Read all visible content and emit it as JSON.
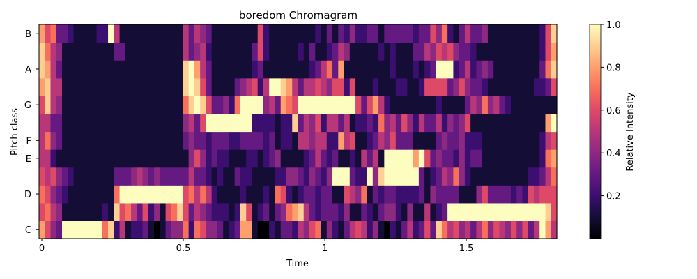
{
  "chart_data": {
    "type": "heatmap",
    "title": "boredom Chromagram",
    "xlabel": "Time",
    "ylabel": "Pitch class",
    "xlim": [
      0,
      1.82
    ],
    "x_ticks": [
      0,
      0.5,
      1,
      1.5
    ],
    "x_tick_labels": [
      "0",
      "0.5",
      "1",
      "1.5"
    ],
    "y_ticks": [
      "C",
      "D",
      "E",
      "F",
      "G",
      "A",
      "B"
    ],
    "rows": [
      "C",
      "C#",
      "D",
      "D#",
      "E",
      "F",
      "F#",
      "G",
      "G#",
      "A",
      "A#",
      "B"
    ],
    "colorbar": {
      "label": "Relative Intensity",
      "range": [
        0,
        1
      ],
      "ticks": [
        0.2,
        0.4,
        0.6,
        0.8,
        1.0
      ],
      "tick_labels": [
        "0.2",
        "0.4",
        "0.6",
        "0.8",
        "1.0"
      ],
      "colormap": "magma"
    },
    "values": [
      [
        0.8,
        0.6,
        0.4,
        0.3,
        1,
        1,
        1,
        1,
        1,
        1,
        1,
        0.7,
        0.9,
        0.2,
        0.5,
        0.1,
        0.2,
        0.2,
        0.3,
        0.1,
        0,
        0.1,
        0.3,
        0.4,
        0.4,
        0.7,
        0.2,
        0.7,
        0.6,
        0.4,
        0.4,
        0.3,
        0.1,
        0.2,
        0.3,
        0.8,
        0.8,
        0.1,
        0,
        0,
        0.2,
        0.1,
        0.3,
        0.3,
        0.2,
        0.5,
        0.4,
        0.6,
        0.7,
        0.1,
        0.4,
        0.2,
        0.1,
        0.3,
        0.5,
        0.6,
        0.5,
        0.2,
        0.4,
        0.1,
        0,
        0.2,
        0.1,
        0.3,
        0.5,
        0.2,
        0.3,
        0.6,
        0.3,
        0.9,
        0.7,
        0.5,
        0.6,
        0.4,
        0.5,
        0.3,
        0.5,
        0.7,
        0.4,
        0.6,
        0.5,
        0.4,
        0.6,
        0.4,
        0.6,
        0.3,
        0.5,
        1,
        0.8,
        0.5
      ],
      [
        0.6,
        0.7,
        0.5,
        0.4,
        0.1,
        0.1,
        0.1,
        0.1,
        0.1,
        0.1,
        0.1,
        0.2,
        0.1,
        0.9,
        0.6,
        0.7,
        0.5,
        0.3,
        0.6,
        0.2,
        0.4,
        0.1,
        0.6,
        0.7,
        0.9,
        0.6,
        0.3,
        0.5,
        0.4,
        0.3,
        0.2,
        0.2,
        0.2,
        0.1,
        0.2,
        0.9,
        0.6,
        0.1,
        0.2,
        0.3,
        0.1,
        0.3,
        0.4,
        0.7,
        0.8,
        0.9,
        0.5,
        0.3,
        0.2,
        0.3,
        0.3,
        0.3,
        0.2,
        0.4,
        0.1,
        0.1,
        0.3,
        0.2,
        0.1,
        0.3,
        0.4,
        0.4,
        0.2,
        0.1,
        0.4,
        0.1,
        0.1,
        0.5,
        0.1,
        0.2,
        0.3,
        1,
        1,
        1,
        1,
        1,
        1,
        1,
        1,
        1,
        1,
        1,
        1,
        1,
        1,
        1,
        1,
        1,
        0.9,
        0.6
      ],
      [
        0.7,
        0.6,
        0.4,
        0.3,
        0.2,
        0.1,
        0.1,
        0.1,
        0.1,
        0.1,
        0.1,
        0.1,
        0.1,
        0.7,
        1,
        1,
        1,
        1,
        1,
        1,
        1,
        1,
        1,
        1,
        1,
        0.6,
        0.7,
        0.5,
        0.7,
        0.5,
        0.2,
        0.1,
        0.1,
        0.1,
        0.1,
        0.2,
        0.1,
        0.1,
        0.1,
        0.2,
        0.1,
        0.7,
        0.6,
        0.2,
        0.1,
        0.2,
        0.3,
        0.3,
        0.2,
        0.3,
        0.3,
        0.1,
        0.1,
        0.6,
        0.5,
        0.4,
        0.7,
        0.1,
        0.3,
        0.2,
        0.3,
        0.3,
        0.2,
        0.2,
        0.2,
        0.2,
        0.3,
        0.1,
        0.4,
        0.3,
        0.3,
        0.3,
        0.3,
        0.1,
        0.1,
        0.1,
        0.4,
        0.6,
        0.3,
        0.3,
        0.3,
        0.3,
        0.2,
        0.3,
        0.2,
        0.6,
        0.5,
        0.6,
        0.6,
        0.6
      ],
      [
        0.6,
        0.5,
        0.6,
        0.4,
        0.3,
        0.2,
        0.1,
        0.1,
        0.1,
        0.1,
        0.1,
        0.1,
        0.1,
        0.3,
        0.3,
        0.3,
        0.4,
        0.5,
        0.4,
        0.3,
        0.4,
        0.3,
        0.3,
        0.3,
        0.3,
        0.3,
        0.5,
        0.3,
        0.3,
        0.2,
        0.1,
        0.2,
        0.1,
        0.1,
        0.3,
        0.2,
        0.2,
        0.1,
        0.1,
        0.1,
        0.1,
        0.2,
        0.2,
        0.4,
        0.4,
        0.3,
        0.2,
        0.4,
        0.3,
        0.2,
        0.4,
        1,
        1,
        1,
        0.3,
        0.2,
        0.2,
        1,
        0.4,
        0.9,
        1,
        1,
        1,
        1,
        1,
        1,
        0.3,
        0.1,
        0.2,
        0.3,
        0.5,
        0.4,
        0.7,
        0.4,
        0.2,
        0.1,
        0.1,
        0.1,
        0.1,
        0.1,
        0.1,
        0.1,
        0.1,
        0.1,
        0.1,
        0.2,
        0.2,
        0.3,
        0.5,
        0.7
      ],
      [
        0.5,
        0.5,
        0.2,
        0.1,
        0.1,
        0.1,
        0.1,
        0.1,
        0.1,
        0.1,
        0.1,
        0.1,
        0.1,
        0.1,
        0.1,
        0.1,
        0.1,
        0.1,
        0.1,
        0.1,
        0.1,
        0.1,
        0.1,
        0.1,
        0.1,
        0.1,
        0.4,
        0.6,
        0.4,
        0.2,
        0.3,
        0.2,
        0.2,
        0.1,
        0.1,
        0.1,
        0.2,
        0.2,
        0.1,
        0.2,
        0.3,
        0.4,
        0.1,
        0.1,
        0.1,
        0.1,
        0.2,
        0.3,
        0.5,
        0.3,
        0.2,
        0.3,
        0.1,
        0.1,
        0.2,
        0.1,
        0.5,
        0.3,
        0.5,
        0.1,
        1,
        1,
        1,
        1,
        1,
        0.8,
        1,
        0.6,
        0.3,
        0.4,
        0.3,
        0.3,
        0.2,
        0.4,
        0.2,
        0.3,
        0.3,
        0.1,
        0.1,
        0.1,
        0.1,
        0.1,
        0.1,
        0.1,
        0.1,
        0.1,
        0.1,
        0.2,
        0.7,
        0.8
      ],
      [
        0.5,
        0.7,
        0.4,
        0.3,
        0.1,
        0.1,
        0.1,
        0.1,
        0.1,
        0.1,
        0.1,
        0.1,
        0.1,
        0.1,
        0.1,
        0.1,
        0.1,
        0.1,
        0.1,
        0.1,
        0.1,
        0.1,
        0.1,
        0.1,
        0.1,
        0.3,
        0.4,
        0.3,
        0.3,
        0.2,
        0.3,
        0.3,
        0.3,
        0.2,
        0.2,
        0.3,
        0.3,
        0.3,
        0.3,
        0.2,
        0.3,
        0.1,
        0.2,
        0.2,
        0.1,
        0.5,
        0.5,
        0.4,
        0.5,
        0.5,
        0.2,
        0.2,
        0.8,
        0.5,
        0.6,
        0.1,
        0.1,
        0.2,
        0.3,
        0.5,
        0.4,
        0.6,
        0.3,
        0.3,
        0.3,
        0.1,
        0.1,
        0.1,
        0.1,
        0.3,
        0.4,
        0.3,
        0.3,
        0.4,
        0.2,
        0.2,
        0.2,
        0.1,
        0.1,
        0.1,
        0.1,
        0.1,
        0.1,
        0.1,
        0.1,
        0.1,
        0.1,
        0.2,
        0.5,
        0.6
      ],
      [
        0.5,
        0.5,
        0.3,
        0.3,
        0.1,
        0.1,
        0.1,
        0.1,
        0.1,
        0.1,
        0.1,
        0.1,
        0.1,
        0.1,
        0.1,
        0.1,
        0.1,
        0.1,
        0.1,
        0.1,
        0.1,
        0.1,
        0.1,
        0.1,
        0.1,
        0.4,
        0.5,
        0.3,
        0.6,
        1,
        1,
        1,
        1,
        1,
        1,
        1,
        1,
        0.2,
        0.2,
        0.2,
        0.2,
        0.1,
        0.2,
        0.2,
        0.9,
        0.3,
        0.5,
        0.4,
        0.6,
        0.2,
        0.5,
        0.5,
        0.3,
        0.5,
        0.1,
        0.2,
        0.2,
        0.3,
        0.2,
        0.7,
        0.4,
        0.5,
        0.3,
        0.6,
        0.4,
        0.2,
        0.5,
        0.3,
        0.3,
        0.5,
        0.2,
        0.4,
        0.3,
        0.4,
        0.6,
        0.1,
        0.1,
        0.1,
        0.1,
        0.1,
        0.1,
        0.1,
        0.1,
        0.1,
        0.1,
        0.1,
        0.1,
        0.1,
        0.8,
        1
      ],
      [
        0.6,
        0.9,
        0.5,
        0.4,
        0.1,
        0.1,
        0.1,
        0.1,
        0.1,
        0.1,
        0.1,
        0.1,
        0.1,
        0.1,
        0.1,
        0.1,
        0.1,
        0.1,
        0.1,
        0.1,
        0.1,
        0.1,
        0.1,
        0.1,
        0.1,
        0.7,
        0.9,
        1,
        0.9,
        0.6,
        0.3,
        0.3,
        0.4,
        0.2,
        0.7,
        1,
        1,
        1,
        1,
        0.4,
        0.5,
        0.3,
        0.8,
        0.7,
        0.6,
        1,
        1,
        1,
        1,
        1,
        1,
        1,
        1,
        1,
        1,
        0.6,
        0.3,
        0.6,
        0.8,
        0.5,
        0.2,
        0.1,
        0.1,
        0.1,
        0.1,
        0.1,
        0.1,
        0.1,
        0.1,
        0.2,
        0.1,
        0.1,
        0.1,
        0.1,
        0.3,
        0.5,
        0.4,
        0.7,
        0.4,
        0.5,
        0.3,
        0.2,
        0.1,
        0.1,
        0.1,
        0.1,
        0.1,
        0.1,
        0.1,
        0.1
      ],
      [
        0.8,
        0.9,
        0.5,
        0.5,
        0.1,
        0.1,
        0.1,
        0.1,
        0.1,
        0.1,
        0.1,
        0.1,
        0.1,
        0.1,
        0.1,
        0.1,
        0.1,
        0.1,
        0.1,
        0.1,
        0.1,
        0.1,
        0.1,
        0.1,
        0.1,
        0.9,
        1,
        0.9,
        0.6,
        0.3,
        0.1,
        0.1,
        0.1,
        0.1,
        0.3,
        0.4,
        0.5,
        0.6,
        0.2,
        0.5,
        1,
        1,
        0.9,
        0.8,
        0.5,
        0.3,
        0.5,
        0.5,
        0.6,
        0.5,
        0.4,
        0.6,
        0.6,
        0.2,
        0.6,
        0.1,
        0.1,
        0.1,
        0.2,
        0.1,
        0.1,
        0.1,
        0.2,
        0.2,
        0.1,
        0.1,
        0.2,
        0.6,
        0.6,
        0.6,
        0.6,
        0.3,
        0.4,
        0.6,
        0.4,
        0.3,
        0.3,
        0.2,
        0.1,
        0.1,
        0.1,
        0.1,
        0.1,
        0.1,
        0.1,
        0.1,
        0.2,
        0.2,
        0.3,
        0.6
      ],
      [
        0.9,
        0.8,
        0.5,
        0.3,
        0.1,
        0.1,
        0.1,
        0.1,
        0.1,
        0.1,
        0.1,
        0.1,
        0.1,
        0.1,
        0.1,
        0.1,
        0.1,
        0.1,
        0.1,
        0.1,
        0.1,
        0.1,
        0.1,
        0.1,
        0.1,
        0.9,
        1,
        0.8,
        0.5,
        0.3,
        0.1,
        0.1,
        0.1,
        0.1,
        0.1,
        0.1,
        0.1,
        0.2,
        0.3,
        0.1,
        0.1,
        0.1,
        0.1,
        0.1,
        0.1,
        0.1,
        0.1,
        0.2,
        0.3,
        0.5,
        0.7,
        0.3,
        0.8,
        0.1,
        0.1,
        0.1,
        0.1,
        0.1,
        0.1,
        0.1,
        0.1,
        0.2,
        0.1,
        0.1,
        0.1,
        0.2,
        0.1,
        0.2,
        0.3,
        1,
        1,
        1,
        0.2,
        0.3,
        0.5,
        0.2,
        0.3,
        0.4,
        0.3,
        0.1,
        0.1,
        0.1,
        0.1,
        0.1,
        0.1,
        0.1,
        0.1,
        0.3,
        0.7,
        0.9
      ],
      [
        0.9,
        0.7,
        0.5,
        0.4,
        0.1,
        0.1,
        0.1,
        0.1,
        0.1,
        0.1,
        0.1,
        0.1,
        0.1,
        0.3,
        0.3,
        0.1,
        0.1,
        0.1,
        0.1,
        0.1,
        0.1,
        0.1,
        0.1,
        0.1,
        0.1,
        0.5,
        0.3,
        0.4,
        0.5,
        0.2,
        0.1,
        0.1,
        0.1,
        0.1,
        0.1,
        0.1,
        0.1,
        0.3,
        0.6,
        0.2,
        0.1,
        0.1,
        0.1,
        0.1,
        0.1,
        0.2,
        0.1,
        0.3,
        0.1,
        0.1,
        0.2,
        0.3,
        0.5,
        0.4,
        0.1,
        0.1,
        0.1,
        0.1,
        0.1,
        0.2,
        0.1,
        0.2,
        0.1,
        0.1,
        0.1,
        0.3,
        0.3,
        0.5,
        0.4,
        0.6,
        0.5,
        0.6,
        0.4,
        0.3,
        0.3,
        0.2,
        0.1,
        0.1,
        0.1,
        0.1,
        0.1,
        0.1,
        0.1,
        0.1,
        0.1,
        0.1,
        0.1,
        0.2,
        0.6,
        0.8
      ],
      [
        0.8,
        0.6,
        0.7,
        0.3,
        0.3,
        0.2,
        0.1,
        0.1,
        0.1,
        0.1,
        0.2,
        0.2,
        1,
        0.5,
        0.1,
        0.1,
        0.1,
        0.1,
        0.1,
        0.1,
        0.1,
        0.1,
        0.1,
        0.1,
        0.1,
        0.5,
        0.3,
        0.5,
        0.4,
        0.3,
        0.1,
        0.1,
        0.1,
        0.1,
        0.1,
        0.1,
        0.1,
        0.1,
        0.6,
        0.2,
        0.1,
        0.1,
        0.1,
        0.1,
        0.1,
        0.1,
        0.1,
        0.1,
        0.2,
        0.1,
        0.3,
        0.1,
        0.3,
        0.2,
        0.4,
        0.2,
        0.2,
        0.3,
        0.3,
        0.1,
        0.3,
        0.3,
        0.3,
        0.3,
        0.3,
        0.2,
        0.3,
        0.3,
        0.6,
        0.4,
        0.7,
        0.2,
        0.1,
        0.3,
        0.5,
        0.3,
        0.3,
        0.4,
        0.1,
        0.1,
        0.1,
        0.1,
        0.1,
        0.1,
        0.1,
        0.1,
        0.1,
        0.2,
        0.6,
        0.9
      ]
    ]
  }
}
